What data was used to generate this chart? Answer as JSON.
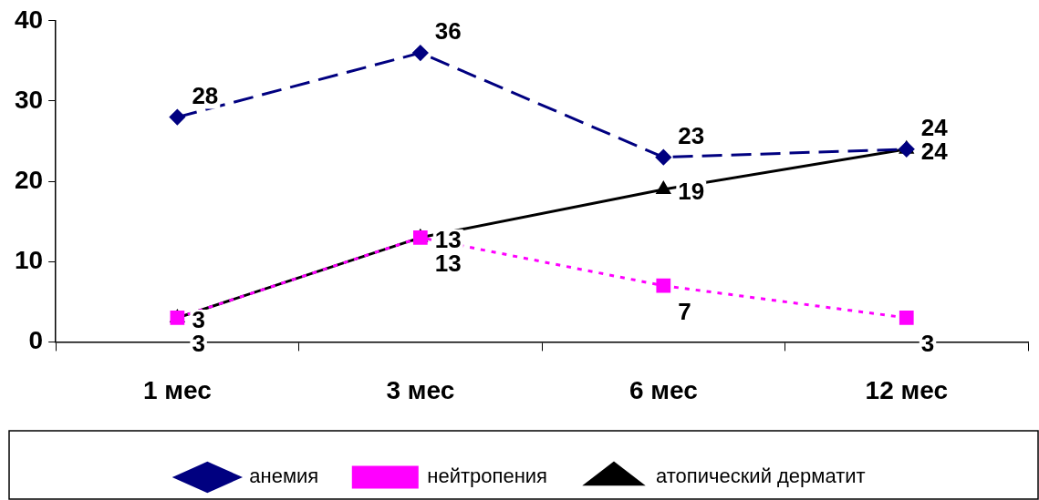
{
  "chart_data": {
    "type": "line",
    "categories": [
      "1 мес",
      "3 мес",
      "6 мес",
      "12 мес"
    ],
    "series": [
      {
        "name": "анемия",
        "color": "#000080",
        "values": [
          28,
          36,
          23,
          24
        ],
        "marker": "diamond",
        "line_style": "dashed"
      },
      {
        "name": "нейтропения",
        "color": "#ff00ff",
        "values": [
          3,
          13,
          7,
          3
        ],
        "marker": "square",
        "line_style": "dotted"
      },
      {
        "name": "атопический дерматит",
        "color": "#000000",
        "values": [
          3,
          13,
          19,
          24
        ],
        "marker": "triangle",
        "line_style": "solid"
      }
    ],
    "ylim": [
      0,
      40
    ],
    "yticks": [
      0,
      10,
      20,
      30,
      40
    ],
    "grid": false,
    "legend": "bottom",
    "data_labels": true
  }
}
